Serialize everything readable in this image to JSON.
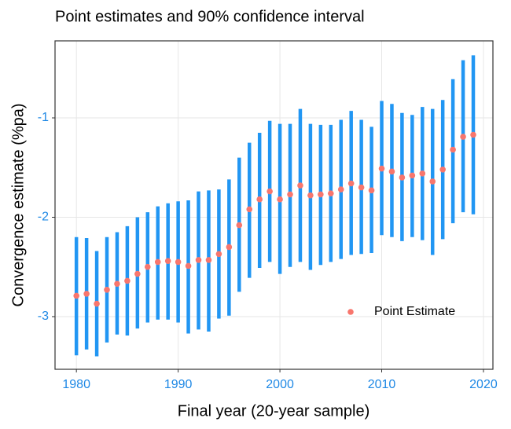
{
  "chart_data": {
    "type": "errorbar",
    "title": "Point estimates and 90% confidence interval",
    "x_label": "Final year (20-year sample)",
    "y_label": "Convergence estimate (%pa)",
    "x": [
      1980,
      1981,
      1982,
      1983,
      1984,
      1985,
      1986,
      1987,
      1988,
      1989,
      1990,
      1991,
      1992,
      1993,
      1994,
      1995,
      1996,
      1997,
      1998,
      1999,
      2000,
      2001,
      2002,
      2003,
      2004,
      2005,
      2006,
      2007,
      2008,
      2009,
      2010,
      2011,
      2012,
      2013,
      2014,
      2015,
      2016,
      2017,
      2018,
      2019
    ],
    "series": [
      {
        "name": "Point Estimate",
        "color": "#f8766d",
        "values": [
          -2.79,
          -2.77,
          -2.87,
          -2.73,
          -2.67,
          -2.64,
          -2.57,
          -2.5,
          -2.45,
          -2.44,
          -2.45,
          -2.49,
          -2.43,
          -2.43,
          -2.37,
          -2.3,
          -2.08,
          -1.92,
          -1.82,
          -1.74,
          -1.82,
          -1.77,
          -1.68,
          -1.78,
          -1.77,
          -1.76,
          -1.72,
          -1.66,
          -1.7,
          -1.73,
          -1.51,
          -1.54,
          -1.6,
          -1.58,
          -1.56,
          -1.64,
          -1.52,
          -1.32,
          -1.19,
          -1.17
        ]
      }
    ],
    "interval_color": "#2196f3",
    "lower": [
      -3.39,
      -3.33,
      -3.4,
      -3.26,
      -3.18,
      -3.19,
      -3.12,
      -3.06,
      -3.03,
      -3.03,
      -3.06,
      -3.17,
      -3.13,
      -3.15,
      -3.02,
      -2.99,
      -2.75,
      -2.61,
      -2.51,
      -2.45,
      -2.57,
      -2.5,
      -2.45,
      -2.53,
      -2.48,
      -2.45,
      -2.42,
      -2.38,
      -2.37,
      -2.36,
      -2.18,
      -2.2,
      -2.24,
      -2.2,
      -2.23,
      -2.38,
      -2.22,
      -2.06,
      -1.95,
      -1.97
    ],
    "upper": [
      -2.2,
      -2.21,
      -2.34,
      -2.2,
      -2.15,
      -2.09,
      -2.0,
      -1.95,
      -1.89,
      -1.86,
      -1.84,
      -1.83,
      -1.74,
      -1.73,
      -1.72,
      -1.62,
      -1.4,
      -1.25,
      -1.15,
      -1.03,
      -1.06,
      -1.06,
      -0.91,
      -1.06,
      -1.07,
      -1.07,
      -1.02,
      -0.93,
      -1.02,
      -1.09,
      -0.83,
      -0.86,
      -0.95,
      -0.97,
      -0.89,
      -0.91,
      -0.82,
      -0.61,
      -0.42,
      -0.37
    ],
    "xlim": [
      1977.9,
      2020.93
    ],
    "xticks": [
      1980,
      1990,
      2000,
      2010,
      2020
    ],
    "ylim": [
      -3.53,
      -0.225
    ],
    "yticks": [
      -3,
      -2,
      -1
    ],
    "grid": true,
    "legend": "lower-right"
  }
}
